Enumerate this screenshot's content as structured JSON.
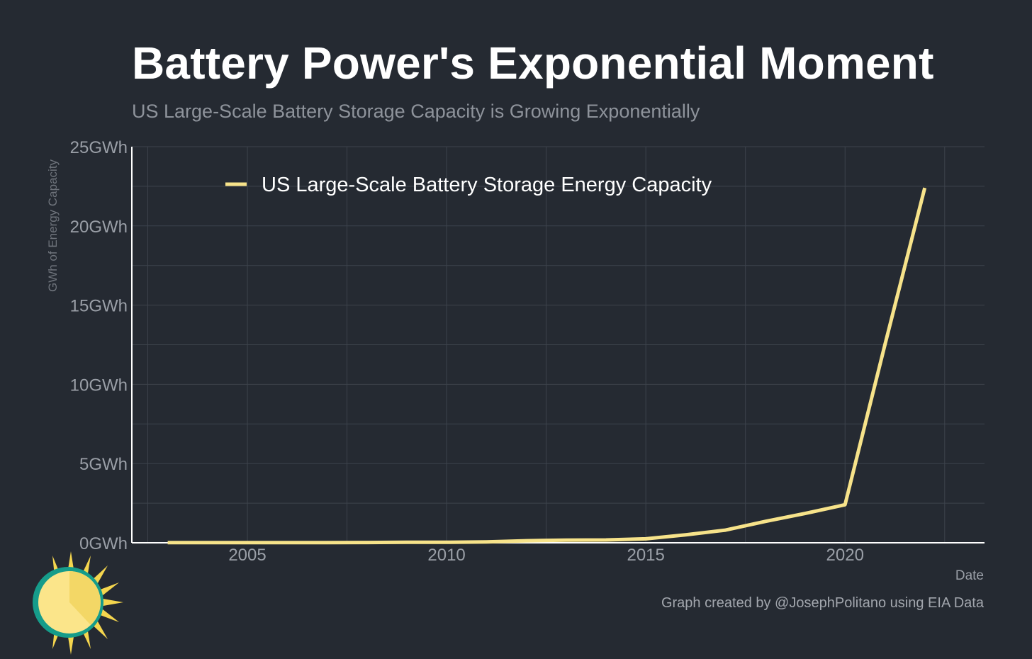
{
  "title": "Battery Power's Exponential Moment",
  "subtitle": "US Large-Scale Battery Storage Capacity is Growing Exponentially",
  "credit": "Graph created by @JosephPolitano using EIA Data",
  "logo": "sun-logo-icon",
  "colors": {
    "background": "#252a32",
    "line": "#f7e38a",
    "grid": "#3d434c",
    "tick_text": "#9a9fa7",
    "legend_text": "#ffffff"
  },
  "chart_data": {
    "type": "line",
    "xlabel": "Date",
    "ylabel": "GWh of Energy Capacity",
    "ylim": [
      0,
      25
    ],
    "xlim": [
      2002.1,
      2023.5
    ],
    "grid": true,
    "legend_position": "top-left",
    "x_ticks": [
      2005,
      2010,
      2015,
      2020
    ],
    "x_tick_labels": [
      "2005",
      "2010",
      "2015",
      "2020"
    ],
    "y_ticks": [
      0,
      5,
      10,
      15,
      20,
      25
    ],
    "y_tick_labels": [
      "0GWh",
      "5GWh",
      "10GWh",
      "15GWh",
      "20GWh",
      "25GWh"
    ],
    "series": [
      {
        "name": "US Large-Scale Battery Storage Energy Capacity",
        "color": "#f7e38a",
        "x": [
          2003,
          2004,
          2005,
          2006,
          2007,
          2008,
          2009,
          2010,
          2011,
          2012,
          2013,
          2014,
          2015,
          2016,
          2017,
          2018,
          2019,
          2020,
          2021,
          2022
        ],
        "values": [
          0.01,
          0.01,
          0.01,
          0.01,
          0.01,
          0.02,
          0.03,
          0.03,
          0.06,
          0.13,
          0.17,
          0.18,
          0.25,
          0.5,
          0.8,
          1.35,
          1.85,
          2.4,
          12.5,
          22.4
        ]
      }
    ]
  }
}
